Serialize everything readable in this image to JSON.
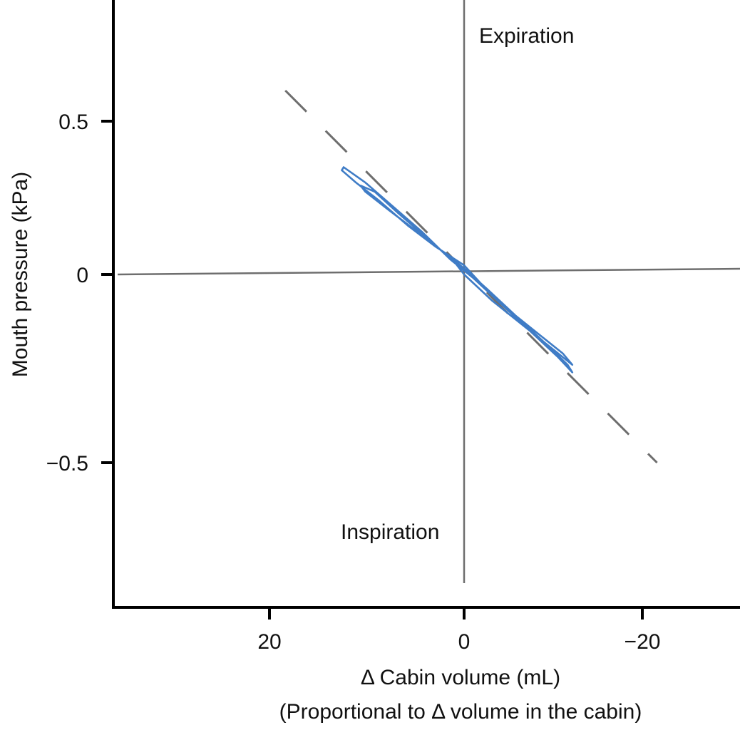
{
  "chart_data": {
    "type": "line",
    "title": "",
    "xlabel": "Δ Cabin volume (mL)",
    "xlabel_line2": "(Proportional to Δ volume in the cabin)",
    "ylabel": "Mouth pressure (kPa)",
    "x_axis_reversed": true,
    "xlim": [
      32,
      -28
    ],
    "ylim": [
      -0.88,
      0.82
    ],
    "x_ticks": [
      20,
      0,
      -20
    ],
    "x_tick_labels": [
      "20",
      "0",
      "−20"
    ],
    "y_ticks": [
      0.5,
      0,
      -0.5
    ],
    "y_tick_labels": [
      "0.5",
      "0",
      "−0.5"
    ],
    "grid": false,
    "annotations": [
      {
        "text": "Expiration",
        "x": -2,
        "y": 0.73
      },
      {
        "text": "Inspiration",
        "x": 7.5,
        "y": -0.7
      }
    ],
    "reference_lines": [
      {
        "name": "zero-volume-line",
        "orientation": "vertical",
        "x": 0,
        "color": "#6e6e6e"
      },
      {
        "name": "zero-pressure-line",
        "orientation": "horizontal",
        "y": 0,
        "color": "#6e6e6e"
      }
    ],
    "dashed_line": {
      "name": "reference-slope-line",
      "color": "#6e6e6e",
      "points": [
        [
          19,
          0.6
        ],
        [
          -20.5,
          -0.5
        ]
      ]
    },
    "series": [
      {
        "name": "pressure-volume loop",
        "color": "#3f7cc6",
        "points": [
          [
            0,
            0.0
          ],
          [
            -3,
            -0.07
          ],
          [
            -6,
            -0.13
          ],
          [
            -9,
            -0.19
          ],
          [
            -11.5,
            -0.24
          ],
          [
            -10.5,
            -0.21
          ],
          [
            -8,
            -0.16
          ],
          [
            -5,
            -0.1
          ],
          [
            -2,
            -0.03
          ],
          [
            0,
            0.03
          ],
          [
            3,
            0.09
          ],
          [
            6,
            0.16
          ],
          [
            9,
            0.24
          ],
          [
            11.5,
            0.3
          ],
          [
            13,
            0.34
          ],
          [
            12.8,
            0.35
          ],
          [
            10.5,
            0.3
          ],
          [
            7.5,
            0.22
          ],
          [
            4.5,
            0.14
          ],
          [
            1.5,
            0.05
          ],
          [
            -1,
            -0.01
          ],
          [
            -4,
            -0.08
          ],
          [
            -7,
            -0.15
          ],
          [
            -10,
            -0.22
          ],
          [
            -11.5,
            -0.26
          ],
          [
            -11,
            -0.24
          ],
          [
            -8.5,
            -0.18
          ],
          [
            -5.5,
            -0.11
          ],
          [
            -2.5,
            -0.04
          ],
          [
            0,
            0.02
          ],
          [
            2.5,
            0.08
          ],
          [
            5,
            0.14
          ],
          [
            8,
            0.21
          ],
          [
            10.5,
            0.27
          ],
          [
            11,
            0.29
          ],
          [
            9.5,
            0.27
          ],
          [
            7,
            0.2
          ],
          [
            4,
            0.12
          ],
          [
            1,
            0.04
          ],
          [
            0,
            0.0
          ]
        ]
      }
    ]
  }
}
